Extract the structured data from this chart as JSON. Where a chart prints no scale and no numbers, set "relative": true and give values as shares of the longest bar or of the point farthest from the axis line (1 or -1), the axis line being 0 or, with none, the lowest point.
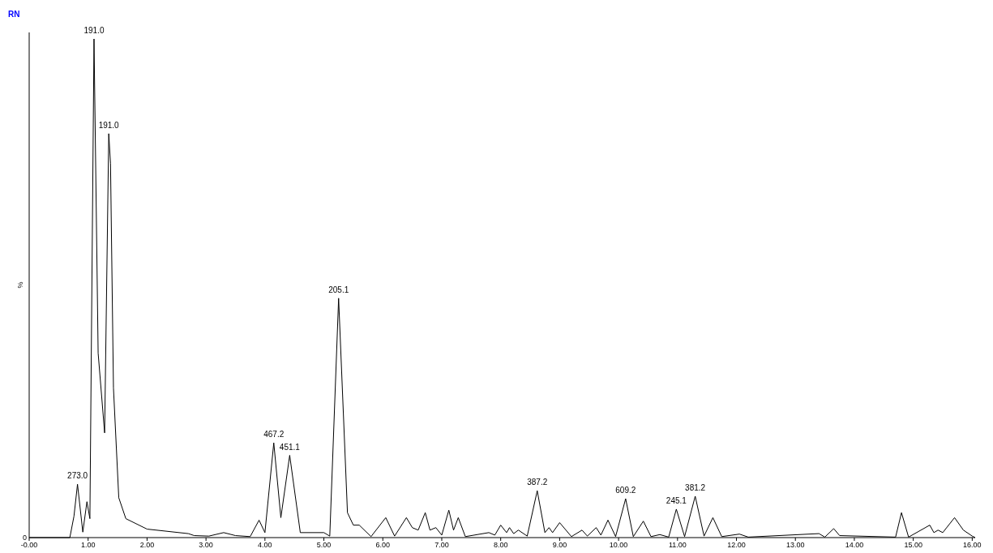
{
  "chart_data": {
    "type": "line",
    "title": "RN",
    "ylabel": "%",
    "relative": true,
    "xlim": [
      0,
      16.05
    ],
    "xticks": [
      {
        "value": 0,
        "label": "-0.00"
      },
      {
        "value": 1,
        "label": "1.00"
      },
      {
        "value": 2,
        "label": "2.00"
      },
      {
        "value": 3,
        "label": "3.00"
      },
      {
        "value": 4,
        "label": "4.00"
      },
      {
        "value": 5,
        "label": "5.00"
      },
      {
        "value": 6,
        "label": "6.00"
      },
      {
        "value": 7,
        "label": "7.00"
      },
      {
        "value": 8,
        "label": "8.00"
      },
      {
        "value": 9,
        "label": "9.00"
      },
      {
        "value": 10,
        "label": "10.00"
      },
      {
        "value": 11,
        "label": "11.00"
      },
      {
        "value": 12,
        "label": "12.00"
      },
      {
        "value": 13,
        "label": "13.00"
      },
      {
        "value": 14,
        "label": "14.00"
      },
      {
        "value": 15,
        "label": "15.00"
      },
      {
        "value": 16,
        "label": "16.00"
      }
    ],
    "series": [
      {
        "color": "#000000",
        "x": [
          0,
          0.69,
          0.76,
          0.82,
          0.91,
          0.98,
          1.03,
          1.1,
          1.17,
          1.28,
          1.35,
          1.38,
          1.43,
          1.52,
          1.64,
          2.0,
          2.7,
          2.8,
          3.05,
          3.3,
          3.5,
          3.75,
          3.9,
          4.0,
          4.15,
          4.27,
          4.42,
          4.6,
          5.0,
          5.1,
          5.25,
          5.4,
          5.5,
          5.6,
          5.8,
          6.05,
          6.2,
          6.4,
          6.5,
          6.6,
          6.72,
          6.8,
          6.9,
          7.0,
          7.12,
          7.2,
          7.28,
          7.4,
          7.8,
          7.9,
          8.0,
          8.1,
          8.15,
          8.22,
          8.3,
          8.45,
          8.62,
          8.75,
          8.82,
          8.88,
          9.0,
          9.2,
          9.38,
          9.47,
          9.62,
          9.7,
          9.82,
          9.95,
          10.12,
          10.25,
          10.42,
          10.55,
          10.7,
          10.85,
          10.98,
          11.12,
          11.3,
          11.45,
          11.6,
          11.75,
          12.05,
          12.2,
          13.4,
          13.5,
          13.65,
          13.75,
          14.7,
          14.8,
          14.92,
          15.28,
          15.35,
          15.42,
          15.5,
          15.7,
          15.85,
          16.0,
          16.05
        ],
        "values": [
          0,
          0,
          0.043,
          0.107,
          0.011,
          0.072,
          0.038,
          1,
          0.37,
          0.21,
          0.81,
          0.75,
          0.3,
          0.08,
          0.038,
          0.017,
          0.008,
          0.004,
          0.003,
          0.01,
          0.004,
          0.002,
          0.035,
          0.01,
          0.19,
          0.04,
          0.165,
          0.01,
          0.01,
          0.003,
          0.48,
          0.05,
          0.025,
          0.025,
          0.002,
          0.04,
          0.003,
          0.04,
          0.02,
          0.015,
          0.05,
          0.015,
          0.02,
          0.005,
          0.055,
          0.015,
          0.04,
          0.002,
          0.01,
          0.005,
          0.025,
          0.01,
          0.02,
          0.008,
          0.015,
          0.003,
          0.094,
          0.01,
          0.02,
          0.01,
          0.03,
          0.002,
          0.015,
          0.003,
          0.02,
          0.005,
          0.035,
          0.002,
          0.078,
          0.002,
          0.033,
          0.002,
          0.006,
          0.001,
          0.057,
          0.002,
          0.083,
          0.003,
          0.04,
          0.002,
          0.007,
          0.001,
          0.008,
          0.001,
          0.018,
          0.004,
          0.001,
          0.05,
          0.001,
          0.025,
          0.01,
          0.015,
          0.01,
          0.04,
          0.015,
          0.003,
          0
        ]
      }
    ],
    "annotations": [
      "0",
      {
        "text": "273.0",
        "x": 0.82,
        "y": 0.107
      },
      {
        "text": "191.0",
        "x": 1.1,
        "y": 1
      },
      {
        "text": "191.0",
        "x": 1.35,
        "y": 0.81
      },
      {
        "text": "467.2",
        "x": 4.15,
        "y": 0.19
      },
      {
        "text": "451.1",
        "x": 4.42,
        "y": 0.165
      },
      {
        "text": "205.1",
        "x": 5.25,
        "y": 0.48
      },
      {
        "text": "387.2",
        "x": 8.62,
        "y": 0.094
      },
      {
        "text": "609.2",
        "x": 10.12,
        "y": 0.078
      },
      {
        "text": "245.1",
        "x": 10.98,
        "y": 0.057
      },
      {
        "text": "381.2",
        "x": 11.3,
        "y": 0.083
      }
    ],
    "marker": "none"
  }
}
